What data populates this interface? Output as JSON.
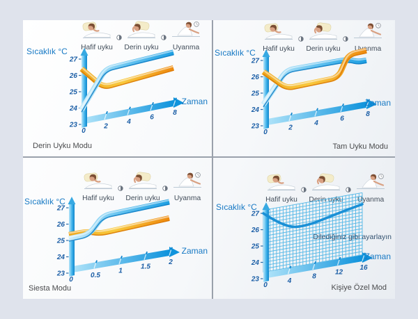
{
  "page": {
    "background": "#dfe3ec",
    "panel_background": "#ffffff"
  },
  "common": {
    "y_axis_label": "Sıcaklık °C",
    "x_axis_label": "Zaman",
    "stages": [
      "Hafif uyku",
      "Derin uyku",
      "Uyanma"
    ]
  },
  "colors": {
    "label_blue": "#1779c4",
    "tick_navy": "#1b5ea6",
    "stage_label": "#414c59",
    "mode_label": "#4a4b4d",
    "annotation": "#31506f",
    "grid_blue": "#38ade4",
    "band_blue_light": "#cdeefb",
    "band_blue_mid": "#67c4f0",
    "band_blue": "#1e9fe2",
    "band_blue_dark": "#0e7cc4",
    "band_orange_light": "#f8c93e",
    "band_orange_start": "#efa81e",
    "band_orange": "#ee8a0e",
    "band_orange_dark": "#d97706",
    "axis_blue": "#0f93dc"
  },
  "chart_data": [
    {
      "type": "line",
      "title": "Derin Uyku Modu",
      "xlabel": "Zaman",
      "ylabel": "Sıcaklık °C",
      "x_ticks": [
        "0",
        "2",
        "4",
        "6",
        "8"
      ],
      "x_max": 8,
      "y_ticks": [
        27,
        26,
        25,
        24,
        23
      ],
      "y_range": [
        23,
        27
      ],
      "grid": false,
      "series": [
        {
          "name": "orange-band",
          "color": "orange",
          "points": [
            [
              0,
              26.4
            ],
            [
              1.9,
              25.0
            ],
            [
              8,
              25.35
            ]
          ]
        },
        {
          "name": "blue-band",
          "color": "blue",
          "points": [
            [
              0,
              23.9
            ],
            [
              2.1,
              26.1
            ],
            [
              8,
              26.3
            ]
          ]
        }
      ]
    },
    {
      "type": "line",
      "title": "Tam Uyku Modu",
      "xlabel": "Zaman",
      "ylabel": "Sıcaklık °C",
      "x_ticks": [
        "0",
        "2",
        "4",
        "6",
        "8"
      ],
      "x_max": 8,
      "y_ticks": [
        27,
        26,
        25,
        24,
        23
      ],
      "y_range": [
        23,
        27
      ],
      "grid": false,
      "series": [
        {
          "name": "blue-band",
          "color": "blue",
          "points": [
            [
              0,
              24.3
            ],
            [
              1.8,
              26.15
            ],
            [
              6.6,
              26.15
            ],
            [
              7.3,
              25.9
            ],
            [
              8,
              25.9
            ]
          ]
        },
        {
          "name": "orange-band",
          "color": "orange",
          "points": [
            [
              0,
              26.3
            ],
            [
              1.8,
              25.05
            ],
            [
              5.8,
              25.15
            ],
            [
              6.6,
              26.45
            ],
            [
              8,
              26.5
            ]
          ]
        }
      ]
    },
    {
      "type": "line",
      "title": "Siesta Modu",
      "xlabel": "Zaman",
      "ylabel": "Sıcaklık °C",
      "x_ticks": [
        "0",
        "0.5",
        "1",
        "1.5",
        "2"
      ],
      "x_max": 2,
      "y_ticks": [
        27,
        26,
        25,
        24,
        23
      ],
      "y_range": [
        23,
        27
      ],
      "grid": false,
      "series": [
        {
          "name": "orange-band",
          "color": "orange",
          "points": [
            [
              0,
              25.35
            ],
            [
              0.38,
              25.35
            ],
            [
              0.62,
              25.1
            ],
            [
              2,
              25.3
            ]
          ]
        },
        {
          "name": "blue-band",
          "color": "blue",
          "points": [
            [
              0,
              25.1
            ],
            [
              0.4,
              25.15
            ],
            [
              0.68,
              26.15
            ],
            [
              2,
              26.3
            ]
          ]
        }
      ]
    },
    {
      "type": "line",
      "title": "Kişiye Özel Mod",
      "xlabel": "Zaman",
      "ylabel": "Sıcaklık °C",
      "x_ticks": [
        "0",
        "4",
        "8",
        "12",
        "16"
      ],
      "x_max": 16,
      "y_ticks": [
        27,
        26,
        25,
        24,
        23
      ],
      "y_range": [
        23,
        27
      ],
      "grid": true,
      "annotation": "Dilediğiniz gibi ayarlayın",
      "series": [
        {
          "name": "blue-line",
          "color": "blue-line",
          "points": [
            [
              0,
              27
            ],
            [
              3.5,
              25.9
            ],
            [
              7,
              25.75
            ],
            [
              12,
              26.2
            ],
            [
              16,
              26.5
            ]
          ]
        }
      ]
    }
  ]
}
